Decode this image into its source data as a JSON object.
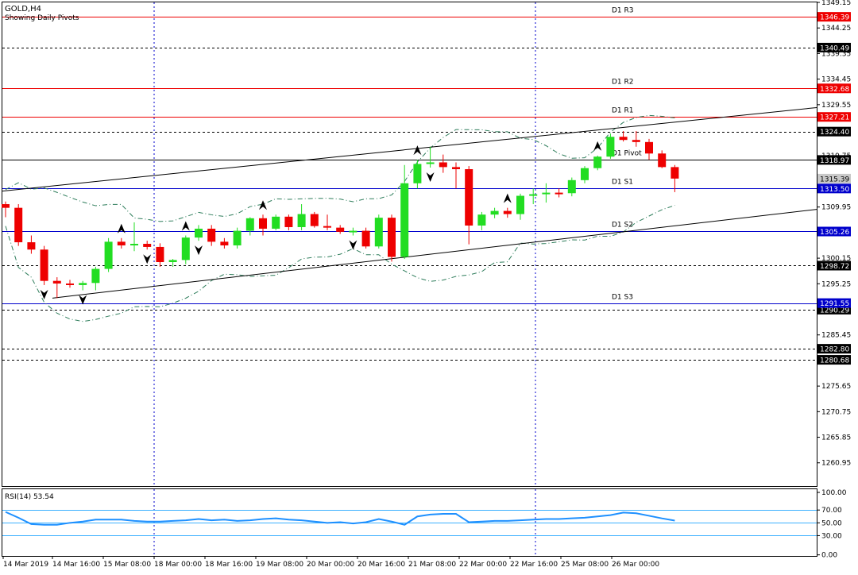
{
  "header": {
    "symbol": "GOLD,H4",
    "subtitle": "Showing Daily Pivots"
  },
  "indicator": {
    "label": "RSI(14) 53.54",
    "value": 53.54
  },
  "colors": {
    "bull": "#22dd22",
    "bear": "#ee0000",
    "pivot_resistance": "#ee0000",
    "pivot_support": "#0000cc",
    "pivot_main": "#000000",
    "rsi_line": "#1e90ff",
    "rsi_levels": "#3db0ff",
    "grid_vertical": "#0000cc"
  },
  "chart_data": [
    {
      "type": "candlestick",
      "panel": "price",
      "ylim": [
        1256.5,
        1349.15
      ],
      "y_ticks": [
        "1349.15",
        "1344.25",
        "1339.35",
        "1334.45",
        "1329.55",
        "1319.75",
        "1309.95",
        "1305.05",
        "1300.15",
        "1295.25",
        "1285.45",
        "1275.65",
        "1270.75",
        "1265.85",
        "1260.95"
      ],
      "x_ticks": [
        "14 Mar 2019",
        "14 Mar 16:00",
        "15 Mar 08:00",
        "18 Mar 00:00",
        "18 Mar 16:00",
        "19 Mar 08:00",
        "20 Mar 00:00",
        "20 Mar 16:00",
        "21 Mar 08:00",
        "22 Mar 00:00",
        "22 Mar 16:00",
        "25 Mar 08:00",
        "26 Mar 00:00"
      ],
      "pivot_lines": [
        {
          "label": "D1 R3",
          "price": "1346.39",
          "value": 1346.39,
          "role": "resistance"
        },
        {
          "label": "D1 R2",
          "price": "1332.68",
          "value": 1332.68,
          "role": "resistance"
        },
        {
          "label": "D1 R1",
          "price": "1327.21",
          "value": 1327.21,
          "role": "resistance"
        },
        {
          "label": "D1 Pivot",
          "price": "1318.97",
          "value": 1318.97,
          "role": "pivot"
        },
        {
          "label": "D1 S1",
          "price": "1313.50",
          "value": 1313.5,
          "role": "support"
        },
        {
          "label": "D1 S2",
          "price": "1305.26",
          "value": 1305.26,
          "role": "support"
        },
        {
          "label": "D1 S3",
          "price": "1291.55",
          "value": 1291.55,
          "role": "support"
        }
      ],
      "levels": [
        {
          "price": "1340.49",
          "value": 1340.49
        },
        {
          "price": "1324.40",
          "value": 1324.4
        },
        {
          "price": "1298.72",
          "value": 1298.72
        },
        {
          "price": "1290.29",
          "value": 1290.29
        },
        {
          "price": "1282.80",
          "value": 1282.8
        },
        {
          "price": "1280.68",
          "value": 1280.68
        }
      ],
      "current_price": {
        "price": "1315.39",
        "value": 1315.39
      },
      "candles": [
        [
          1310.5,
          1311.0,
          1308.0,
          1309.8
        ],
        [
          1309.8,
          1310.5,
          1302.5,
          1303.2
        ],
        [
          1303.2,
          1304.5,
          1301.0,
          1301.8
        ],
        [
          1301.8,
          1302.5,
          1295.0,
          1295.8
        ],
        [
          1295.8,
          1296.5,
          1292.5,
          1295.3
        ],
        [
          1295.3,
          1296.0,
          1294.5,
          1295.0
        ],
        [
          1295.0,
          1295.8,
          1294.0,
          1295.4
        ],
        [
          1295.4,
          1298.5,
          1294.0,
          1298.1
        ],
        [
          1298.1,
          1304.0,
          1297.5,
          1303.3
        ],
        [
          1303.3,
          1304.0,
          1302.0,
          1302.6
        ],
        [
          1302.6,
          1307.0,
          1301.5,
          1302.9
        ],
        [
          1302.9,
          1303.5,
          1301.8,
          1302.3
        ],
        [
          1302.3,
          1303.0,
          1298.5,
          1299.4
        ],
        [
          1299.4,
          1300.0,
          1298.5,
          1299.8
        ],
        [
          1299.8,
          1304.5,
          1299.0,
          1304.1
        ],
        [
          1304.1,
          1306.5,
          1303.5,
          1305.8
        ],
        [
          1305.8,
          1306.5,
          1302.5,
          1303.3
        ],
        [
          1303.3,
          1304.0,
          1302.0,
          1302.6
        ],
        [
          1302.6,
          1306.0,
          1302.0,
          1305.4
        ],
        [
          1305.4,
          1308.0,
          1304.5,
          1307.8
        ],
        [
          1307.8,
          1308.5,
          1304.5,
          1305.8
        ],
        [
          1305.8,
          1308.5,
          1305.5,
          1308.1
        ],
        [
          1308.1,
          1308.5,
          1305.5,
          1306.1
        ],
        [
          1306.1,
          1310.5,
          1305.5,
          1308.6
        ],
        [
          1308.6,
          1309.0,
          1306.0,
          1306.3
        ],
        [
          1306.3,
          1308.5,
          1305.5,
          1306.0
        ],
        [
          1306.0,
          1306.5,
          1304.8,
          1305.2
        ],
        [
          1305.2,
          1306.0,
          1304.5,
          1305.4
        ],
        [
          1305.4,
          1306.0,
          1302.0,
          1302.4
        ],
        [
          1302.4,
          1308.5,
          1302.0,
          1307.9
        ],
        [
          1307.9,
          1308.5,
          1299.5,
          1300.4
        ],
        [
          1300.4,
          1318.0,
          1300.0,
          1314.5
        ],
        [
          1314.5,
          1319.0,
          1313.5,
          1318.2
        ],
        [
          1318.2,
          1321.5,
          1317.5,
          1318.5
        ],
        [
          1318.5,
          1320.0,
          1316.5,
          1317.6
        ],
        [
          1317.6,
          1318.5,
          1313.5,
          1317.2
        ],
        [
          1317.2,
          1317.8,
          1302.8,
          1306.4
        ],
        [
          1306.4,
          1309.0,
          1305.5,
          1308.5
        ],
        [
          1308.5,
          1309.8,
          1307.8,
          1309.2
        ],
        [
          1309.2,
          1309.8,
          1307.9,
          1308.6
        ],
        [
          1308.6,
          1312.5,
          1307.5,
          1312.1
        ],
        [
          1312.1,
          1313.5,
          1310.5,
          1312.4
        ],
        [
          1312.4,
          1314.5,
          1310.8,
          1312.7
        ],
        [
          1312.7,
          1313.5,
          1311.8,
          1312.6
        ],
        [
          1312.6,
          1315.6,
          1312.0,
          1315.1
        ],
        [
          1315.1,
          1317.8,
          1314.5,
          1317.4
        ],
        [
          1317.4,
          1319.8,
          1317.0,
          1319.6
        ],
        [
          1319.6,
          1324.0,
          1319.2,
          1323.4
        ],
        [
          1323.4,
          1324.5,
          1322.5,
          1322.8
        ],
        [
          1322.8,
          1324.5,
          1321.5,
          1322.4
        ],
        [
          1322.4,
          1323.0,
          1319.0,
          1320.2
        ],
        [
          1320.2,
          1320.8,
          1317.4,
          1317.6
        ],
        [
          1317.6,
          1318.0,
          1312.8,
          1315.4
        ]
      ],
      "fractals": [
        {
          "type": "up",
          "candle": 9
        },
        {
          "type": "up",
          "candle": 14
        },
        {
          "type": "up",
          "candle": 20
        },
        {
          "type": "up",
          "candle": 32
        },
        {
          "type": "up",
          "candle": 39
        },
        {
          "type": "up",
          "candle": 46
        },
        {
          "type": "down",
          "candle": 3
        },
        {
          "type": "down",
          "candle": 6
        },
        {
          "type": "down",
          "candle": 11
        },
        {
          "type": "down",
          "candle": 15
        },
        {
          "type": "down",
          "candle": 27
        },
        {
          "type": "down",
          "candle": 33
        }
      ],
      "channel": {
        "upper": [
          1313.0,
          1329.0
        ],
        "lower": [
          1292.5,
          1309.5
        ]
      }
    },
    {
      "type": "line",
      "panel": "indicator",
      "title": "RSI(14) 53.54",
      "ylim": [
        0,
        100
      ],
      "y_ticks": [
        "100.00",
        "70.00",
        "50.00",
        "30.00",
        "0.00"
      ],
      "levels": [
        70,
        50,
        30
      ],
      "values": [
        67,
        58,
        48,
        47,
        47,
        50,
        52,
        55,
        55,
        55,
        53,
        52,
        52,
        53,
        54,
        56,
        54,
        55,
        53,
        54,
        56,
        57,
        55,
        54,
        52,
        50,
        51,
        49,
        51,
        56,
        52,
        47,
        60,
        63,
        64,
        64,
        51,
        52,
        53,
        53,
        54,
        55,
        56,
        56,
        57,
        58,
        60,
        62,
        66,
        65,
        61,
        57,
        53.54
      ]
    }
  ]
}
